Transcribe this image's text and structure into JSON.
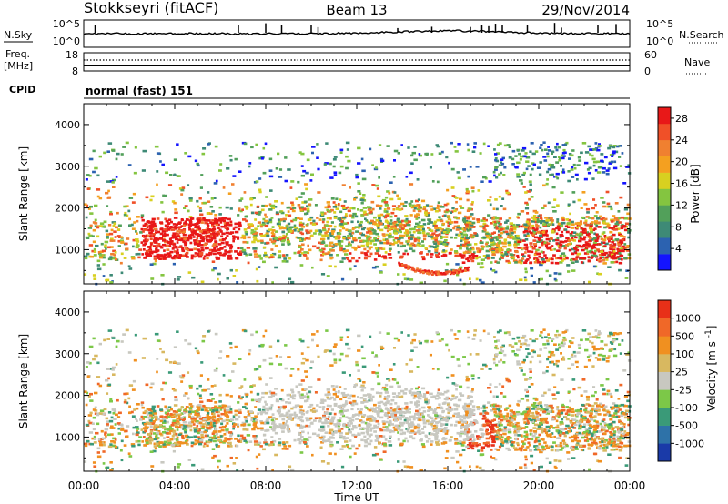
{
  "header": {
    "station": "Stokkseyri (fitACF)",
    "beam": "Beam 13",
    "date": "29/Nov/2014"
  },
  "strip_panels": {
    "nsky": {
      "left_label": "N.Sky",
      "left_ticks": [
        "10^5",
        "10^0"
      ],
      "right_label": "N.Search",
      "right_ticks": [
        "10^5",
        "10^0"
      ]
    },
    "freq": {
      "left_label_1": "Freq.",
      "left_label_2": "[MHz]",
      "left_ticks": [
        "18",
        "8"
      ],
      "right_label": "Nave",
      "right_ticks": [
        "60",
        "0"
      ]
    },
    "cpid": {
      "label": "CPID",
      "mode_text": "normal (fast) 151"
    }
  },
  "chart_data": [
    {
      "type": "heatmap",
      "title": "",
      "ylabel": "Slant Range [km]",
      "xlabel": "",
      "ylim": [
        180,
        4500
      ],
      "xlim_hours": [
        0,
        24
      ],
      "y_ticks": [
        "1000",
        "2000",
        "3000",
        "4000"
      ],
      "x_ticks": [
        "00:00",
        "04:00",
        "08:00",
        "12:00",
        "16:00",
        "20:00",
        "00:00"
      ],
      "colorbar": {
        "label": "Power [dB]",
        "ticks": [
          "4",
          "8",
          "12",
          "16",
          "20",
          "24",
          "28"
        ],
        "range": [
          0,
          30
        ],
        "colors": [
          "#1414ff",
          "#2c62b0",
          "#3e8a76",
          "#52a05a",
          "#84c540",
          "#d8d020",
          "#f4a020",
          "#f08030",
          "#f05028",
          "#e81818"
        ]
      }
    },
    {
      "type": "heatmap",
      "title": "",
      "ylabel": "Slant Range [km]",
      "xlabel": "Time UT",
      "ylim": [
        180,
        4500
      ],
      "xlim_hours": [
        0,
        24
      ],
      "y_ticks": [
        "1000",
        "2000",
        "3000",
        "4000"
      ],
      "x_ticks": [
        "00:00",
        "04:00",
        "08:00",
        "12:00",
        "16:00",
        "20:00",
        "00:00"
      ],
      "colorbar": {
        "label": "Velocity [m s^-1]",
        "ticks": [
          "1000",
          "500",
          "100",
          "25",
          "-25",
          "-100",
          "-500",
          "-1000"
        ],
        "colors": [
          "#1a3aa8",
          "#2e72a8",
          "#3a9a78",
          "#7cc848",
          "#c8c8c0",
          "#d8b860",
          "#f09020",
          "#f06828",
          "#e83018"
        ]
      }
    }
  ]
}
